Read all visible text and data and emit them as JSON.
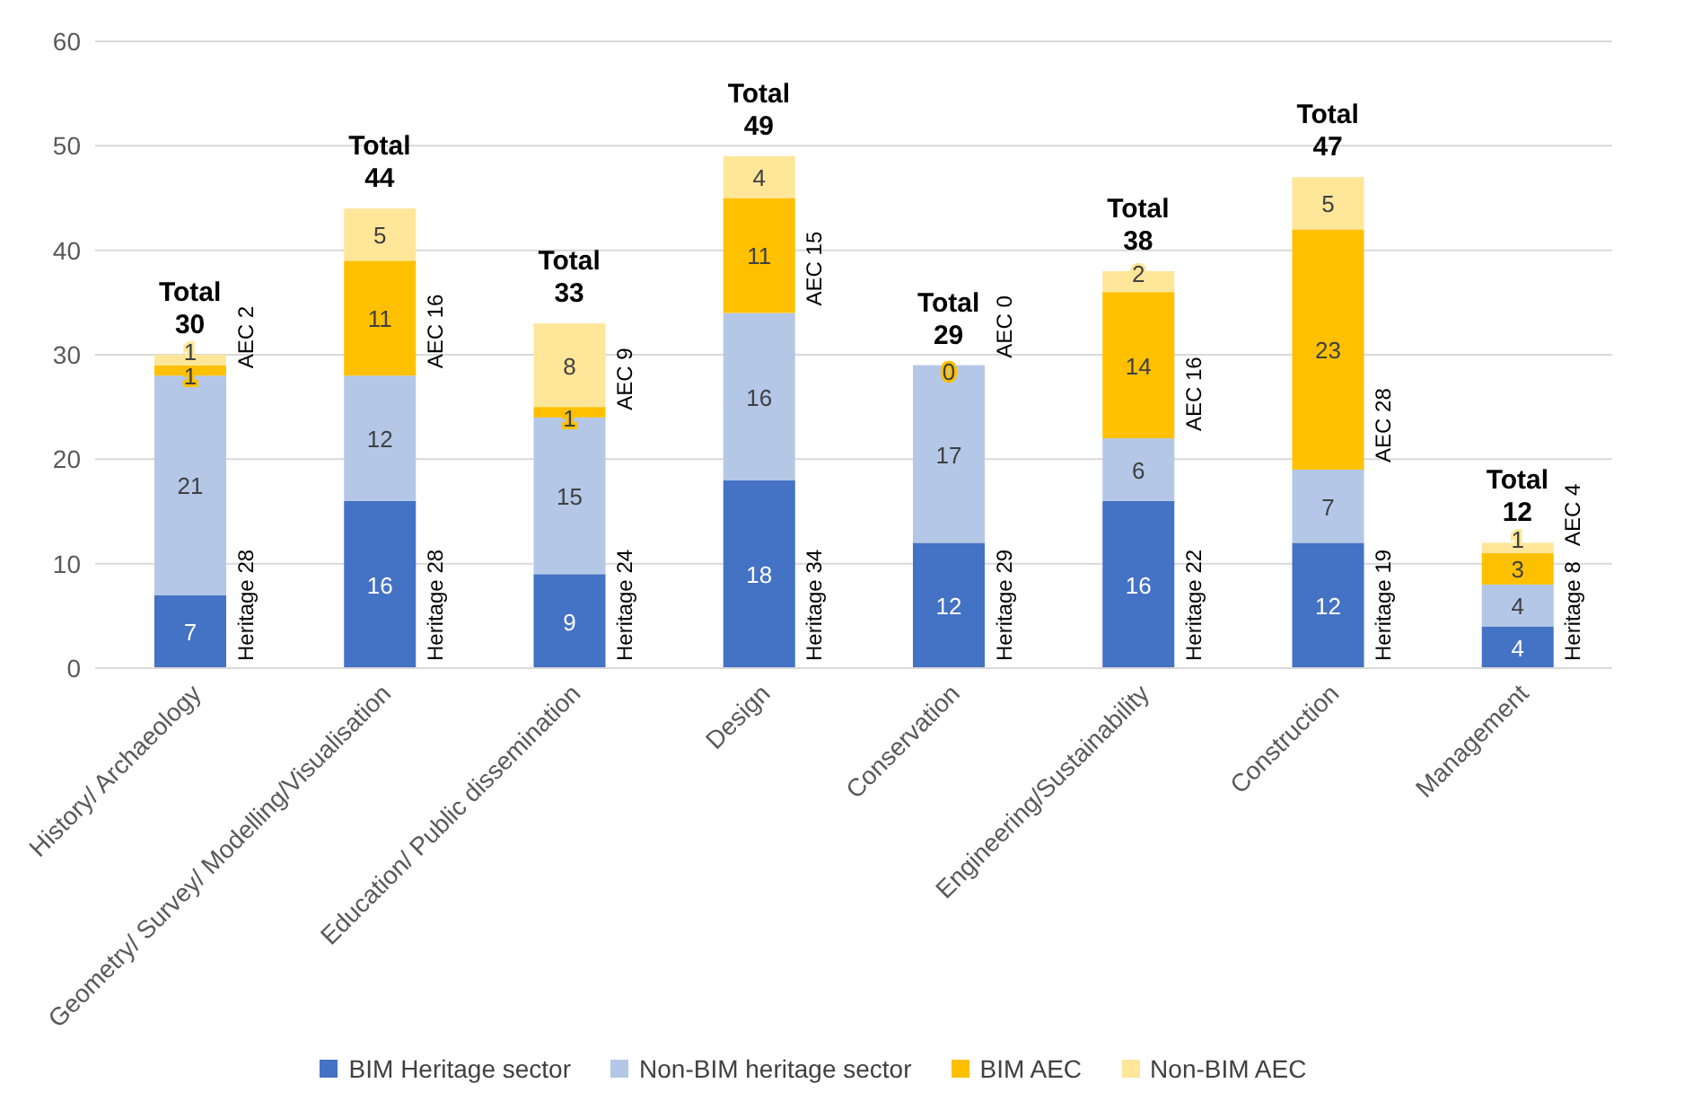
{
  "chart_data": {
    "type": "bar",
    "stacked": true,
    "categories": [
      "History/ Archaeology",
      "Geometry/ Survey/ Modelling/Visualisation",
      "Education/ Public dissemination",
      "Design",
      "Conservation",
      "Engineering/Sustainability",
      "Construction",
      "Management"
    ],
    "series": [
      {
        "name": "BIM Heritage sector",
        "color": "#4472c4",
        "values": [
          7,
          16,
          9,
          18,
          12,
          16,
          12,
          4
        ],
        "value_labels": [
          "7",
          "16",
          "9",
          "18",
          "12",
          "16",
          "12",
          "4"
        ]
      },
      {
        "name": "Non-BIM heritage sector",
        "color": "#b4c7e7",
        "values": [
          21,
          12,
          15,
          16,
          17,
          6,
          7,
          4
        ],
        "value_labels": [
          "21",
          "12",
          "15",
          "16",
          "17",
          "6",
          "7",
          "4"
        ]
      },
      {
        "name": "BIM AEC",
        "color": "#ffc000",
        "values": [
          1,
          11,
          1,
          11,
          0,
          14,
          23,
          3
        ],
        "value_labels": [
          "1",
          "11",
          "1",
          "11",
          "0",
          "14",
          "23",
          "3"
        ]
      },
      {
        "name": "Non-BIM AEC",
        "color": "#ffe699",
        "values": [
          1,
          5,
          8,
          4,
          0,
          2,
          5,
          1
        ],
        "value_labels": [
          "1",
          "5",
          "8",
          "4",
          null,
          "2",
          "5",
          "1"
        ]
      }
    ],
    "ylim": [
      0,
      60
    ],
    "yticks": [
      0,
      10,
      20,
      30,
      40,
      50,
      60
    ],
    "grid": "y",
    "legend": "bottom",
    "totals": [
      "Total 30",
      "Total 44",
      "Total 33",
      "Total 49",
      "Total 29",
      "Total 38",
      "Total 47",
      "Total 12"
    ],
    "annotations": [
      {
        "text": "Heritage 28",
        "x": "History/ Archaeology",
        "y": 0
      },
      {
        "text": "AEC 2",
        "x": "History/ Archaeology",
        "y": 28
      },
      {
        "text": "Heritage 28",
        "x": "Geometry/ Survey/ Modelling/Visualisation",
        "y": 0
      },
      {
        "text": "AEC 16",
        "x": "Geometry/ Survey/ Modelling/Visualisation",
        "y": 28
      },
      {
        "text": "Heritage 24",
        "x": "Education/ Public dissemination",
        "y": 0
      },
      {
        "text": "AEC 9",
        "x": "Education/ Public dissemination",
        "y": 24
      },
      {
        "text": "Heritage 34",
        "x": "Design",
        "y": 0
      },
      {
        "text": "AEC 15",
        "x": "Design",
        "y": 34
      },
      {
        "text": "Heritage 29",
        "x": "Conservation",
        "y": 0
      },
      {
        "text": "AEC 0",
        "x": "Conservation",
        "y": 29
      },
      {
        "text": "Heritage 22",
        "x": "Engineering/Sustainability",
        "y": 0
      },
      {
        "text": "AEC 16",
        "x": "Engineering/Sustainability",
        "y": 22
      },
      {
        "text": "Heritage 19",
        "x": "Construction",
        "y": 0
      },
      {
        "text": "AEC 28",
        "x": "Construction",
        "y": 19
      },
      {
        "text": "Heritage 8",
        "x": "Management",
        "y": 0
      },
      {
        "text": "AEC 4",
        "x": "Management",
        "y": 11
      }
    ]
  }
}
